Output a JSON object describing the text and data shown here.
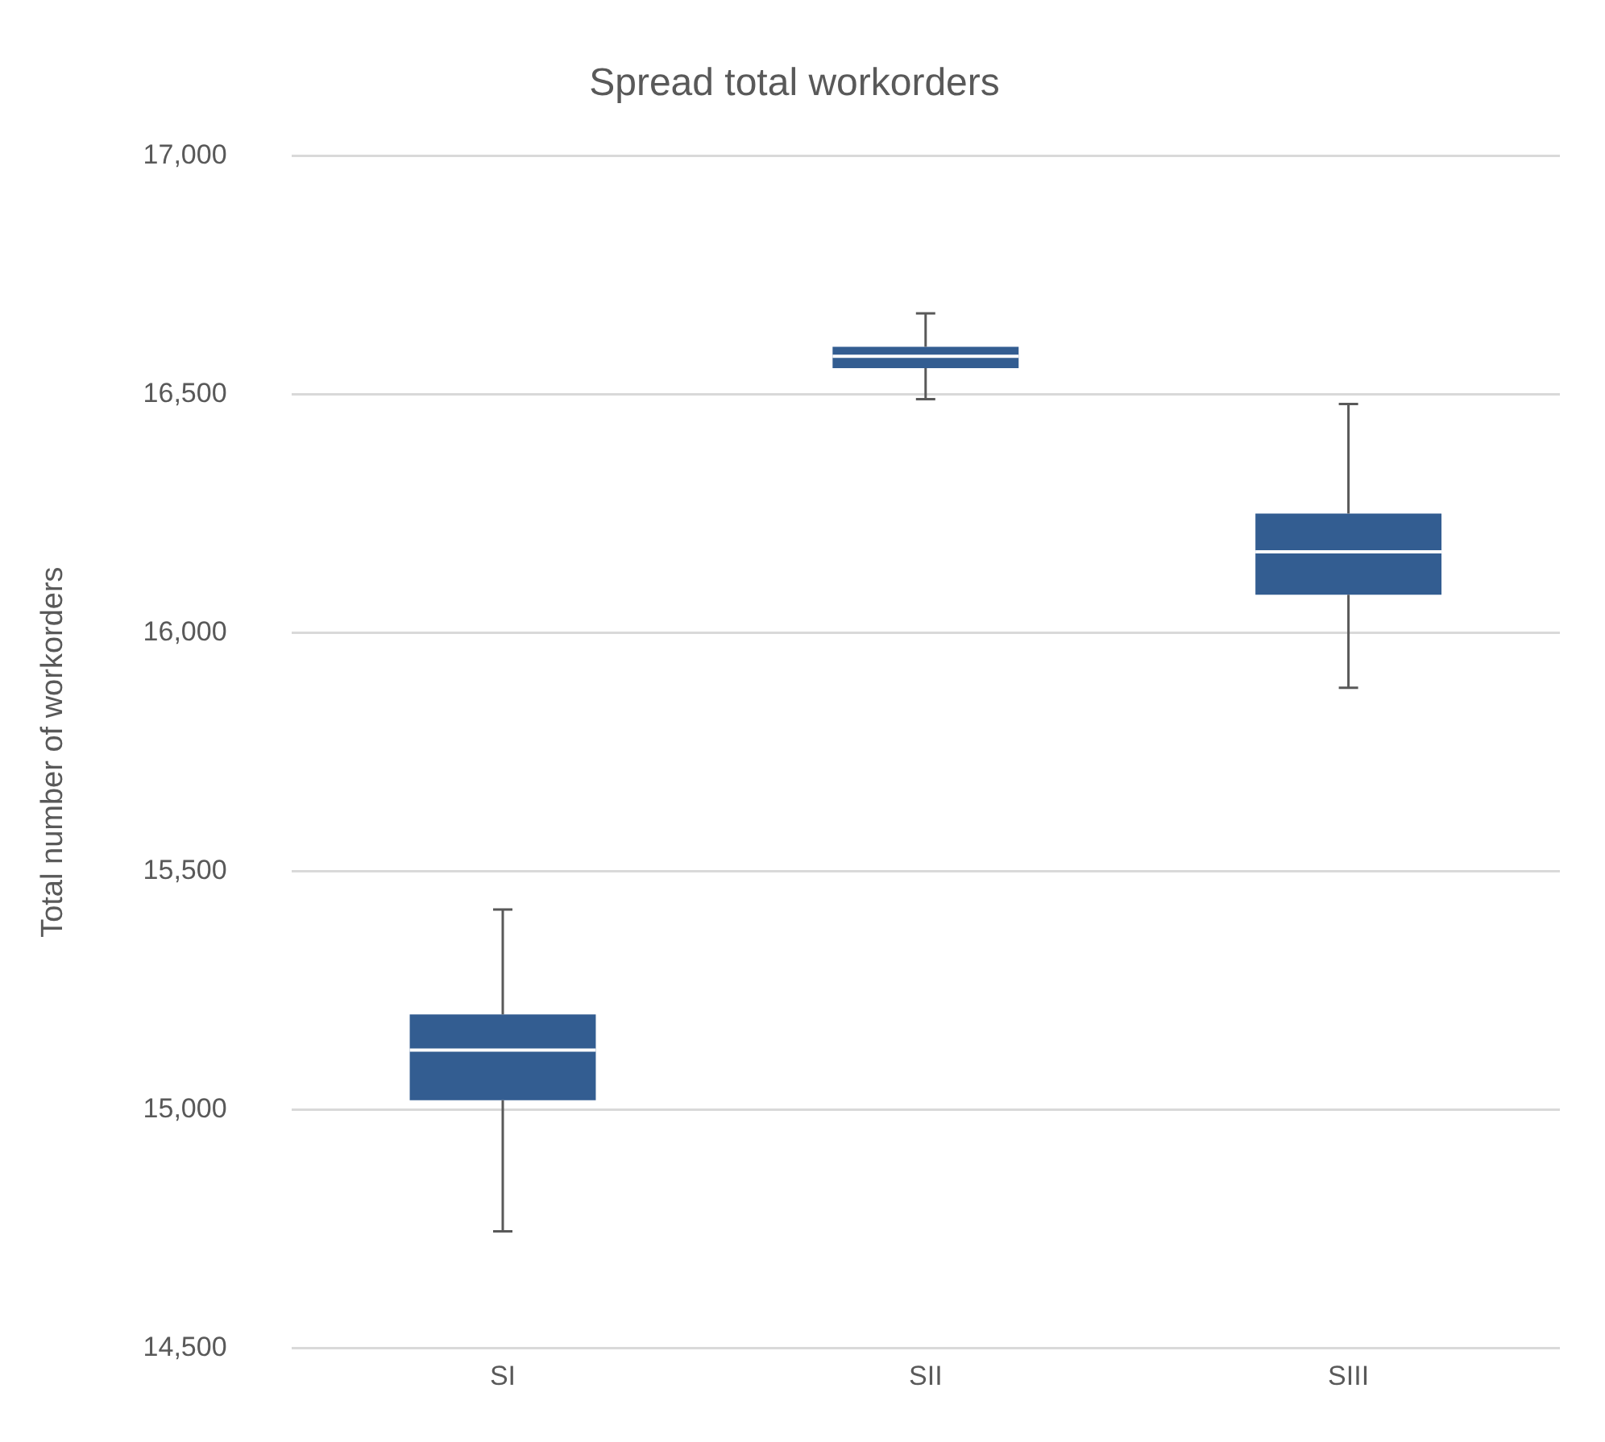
{
  "chart_data": {
    "type": "box",
    "title": "Spread total workorders",
    "ylabel": "Total number of workorders",
    "categories": [
      "SI",
      "SII",
      "SIII"
    ],
    "boxes": [
      {
        "low": 14745,
        "q1": 15020,
        "median": 15125,
        "q3": 15200,
        "high": 15420
      },
      {
        "low": 16490,
        "q1": 16555,
        "median": 16580,
        "q3": 16600,
        "high": 16670
      },
      {
        "low": 15885,
        "q1": 16080,
        "median": 16170,
        "q3": 16250,
        "high": 16480
      }
    ],
    "color": "#335d91",
    "ylim": [
      14500,
      17000
    ],
    "yticks": [
      {
        "value": 14500,
        "label": "14,500"
      },
      {
        "value": 15000,
        "label": "15,000"
      },
      {
        "value": 15500,
        "label": "15,500"
      },
      {
        "value": 16000,
        "label": "16,000"
      },
      {
        "value": 16500,
        "label": "16,500"
      },
      {
        "value": 17000,
        "label": "17,000"
      }
    ],
    "grid": "y",
    "legend": false
  }
}
